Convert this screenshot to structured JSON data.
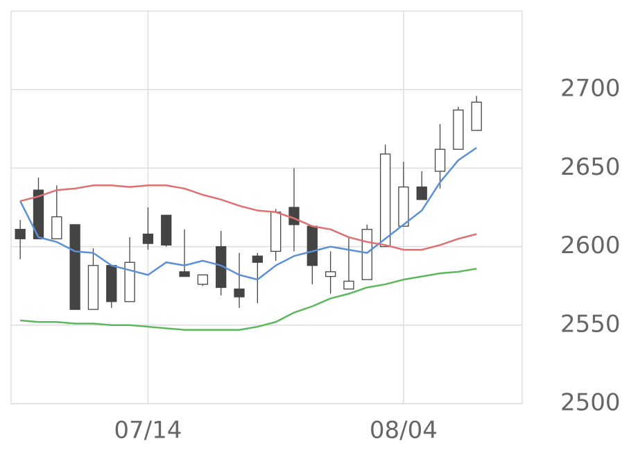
{
  "chart_data": {
    "type": "candlestick",
    "categories": [
      null,
      null,
      null,
      null,
      null,
      null,
      null,
      "07/14",
      null,
      null,
      null,
      null,
      null,
      null,
      null,
      null,
      null,
      null,
      null,
      null,
      null,
      "08/04",
      null,
      null,
      null,
      null
    ],
    "open": [
      2611,
      2636,
      2605,
      2614,
      2560,
      2588,
      2565,
      2608,
      2620,
      2584,
      2576,
      2600,
      2573,
      2594,
      2597,
      2625,
      2613,
      2581,
      2573,
      2579,
      2600,
      2613,
      2638,
      2648,
      2662,
      2674
    ],
    "high": [
      2617,
      2644,
      2639,
      2614,
      2599,
      2588,
      2606,
      2625,
      2620,
      2611,
      2582,
      2610,
      2596,
      2596,
      2624,
      2650,
      2613,
      2597,
      2606,
      2614,
      2665,
      2654,
      2648,
      2678,
      2689,
      2696
    ],
    "low": [
      2592,
      2605,
      2605,
      2560,
      2560,
      2561,
      2565,
      2598,
      2600,
      2581,
      2575,
      2569,
      2561,
      2564,
      2591,
      2597,
      2576,
      2570,
      2573,
      2579,
      2600,
      2613,
      2630,
      2637,
      2662,
      2674
    ],
    "close": [
      2605,
      2605,
      2619,
      2560,
      2588,
      2565,
      2590,
      2602,
      2601,
      2581,
      2582,
      2574,
      2568,
      2590,
      2622,
      2614,
      2588,
      2584,
      2578,
      2611,
      2659,
      2638,
      2630,
      2662,
      2687,
      2692
    ],
    "up_color": "#ffffff",
    "down_color": "#444444",
    "candle_edge": "#444444",
    "series": [
      {
        "color": "#5b8fd6",
        "values": [
          2629,
          2606,
          2603,
          2597,
          2596,
          2588,
          2585,
          2582,
          2590,
          2588,
          2591,
          2588,
          2582,
          2579,
          2588,
          2594,
          2597,
          2600,
          2598,
          2596,
          2605,
          2614,
          2623,
          2641,
          2655,
          2663
        ]
      },
      {
        "color": "#e07070",
        "values": [
          2629,
          2632,
          2636,
          2637,
          2639,
          2639,
          2638,
          2639,
          2639,
          2637,
          2633,
          2630,
          2626,
          2623,
          2622,
          2618,
          2613,
          2611,
          2606,
          2603,
          2601,
          2598,
          2598,
          2601,
          2605,
          2608
        ]
      },
      {
        "color": "#5cb85c",
        "values": [
          2553,
          2552,
          2552,
          2551,
          2551,
          2550,
          2550,
          2549,
          2548,
          2547,
          2547,
          2547,
          2547,
          2549,
          2552,
          2558,
          2562,
          2567,
          2570,
          2574,
          2576,
          2579,
          2581,
          2583,
          2584,
          2586
        ]
      }
    ],
    "ylim": [
      2500,
      2750
    ],
    "yticks": [
      2500,
      2550,
      2600,
      2650,
      2700
    ],
    "grid": true
  }
}
